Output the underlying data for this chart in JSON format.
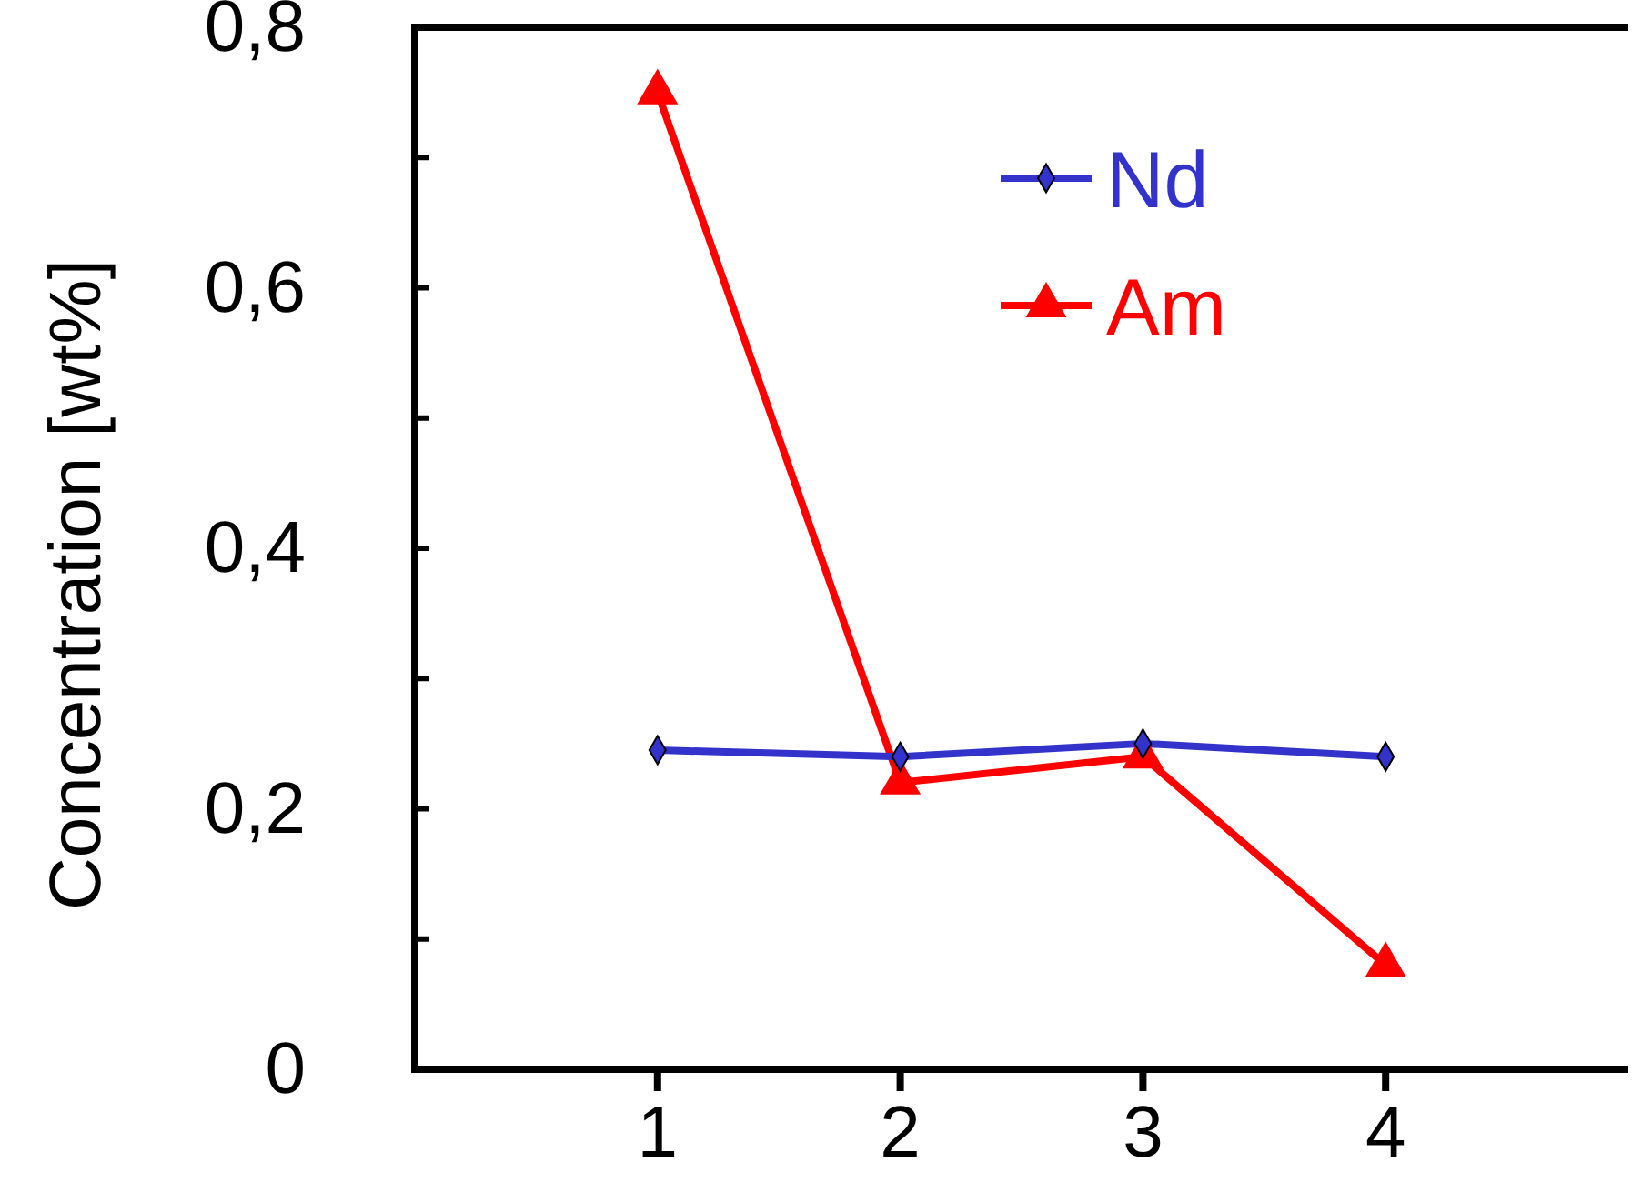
{
  "chart_data": {
    "type": "line",
    "ylabel": "Concentration [wt%]",
    "x": [
      1,
      2,
      3,
      4
    ],
    "xlim": [
      0,
      5
    ],
    "xticks": [
      1,
      2,
      3,
      4
    ],
    "ylim": [
      0,
      0.8
    ],
    "yticks": [
      {
        "value": 0,
        "label": "0"
      },
      {
        "value": 0.1,
        "label": null
      },
      {
        "value": 0.2,
        "label": "0,2"
      },
      {
        "value": 0.3,
        "label": null
      },
      {
        "value": 0.4,
        "label": "0,4"
      },
      {
        "value": 0.5,
        "label": null
      },
      {
        "value": 0.6,
        "label": "0,6"
      },
      {
        "value": 0.7,
        "label": null
      },
      {
        "value": 0.8,
        "label": "0,8"
      }
    ],
    "legend": "top right",
    "line_style": "solid",
    "series": [
      {
        "name": "Nd",
        "color": "#3333cc",
        "marker": "diamond",
        "values": [
          0.245,
          0.24,
          0.25,
          0.24
        ]
      },
      {
        "name": "Am",
        "color": "#ff0000",
        "marker": "triangle",
        "values": [
          0.75,
          0.22,
          0.24,
          0.08
        ]
      }
    ]
  }
}
